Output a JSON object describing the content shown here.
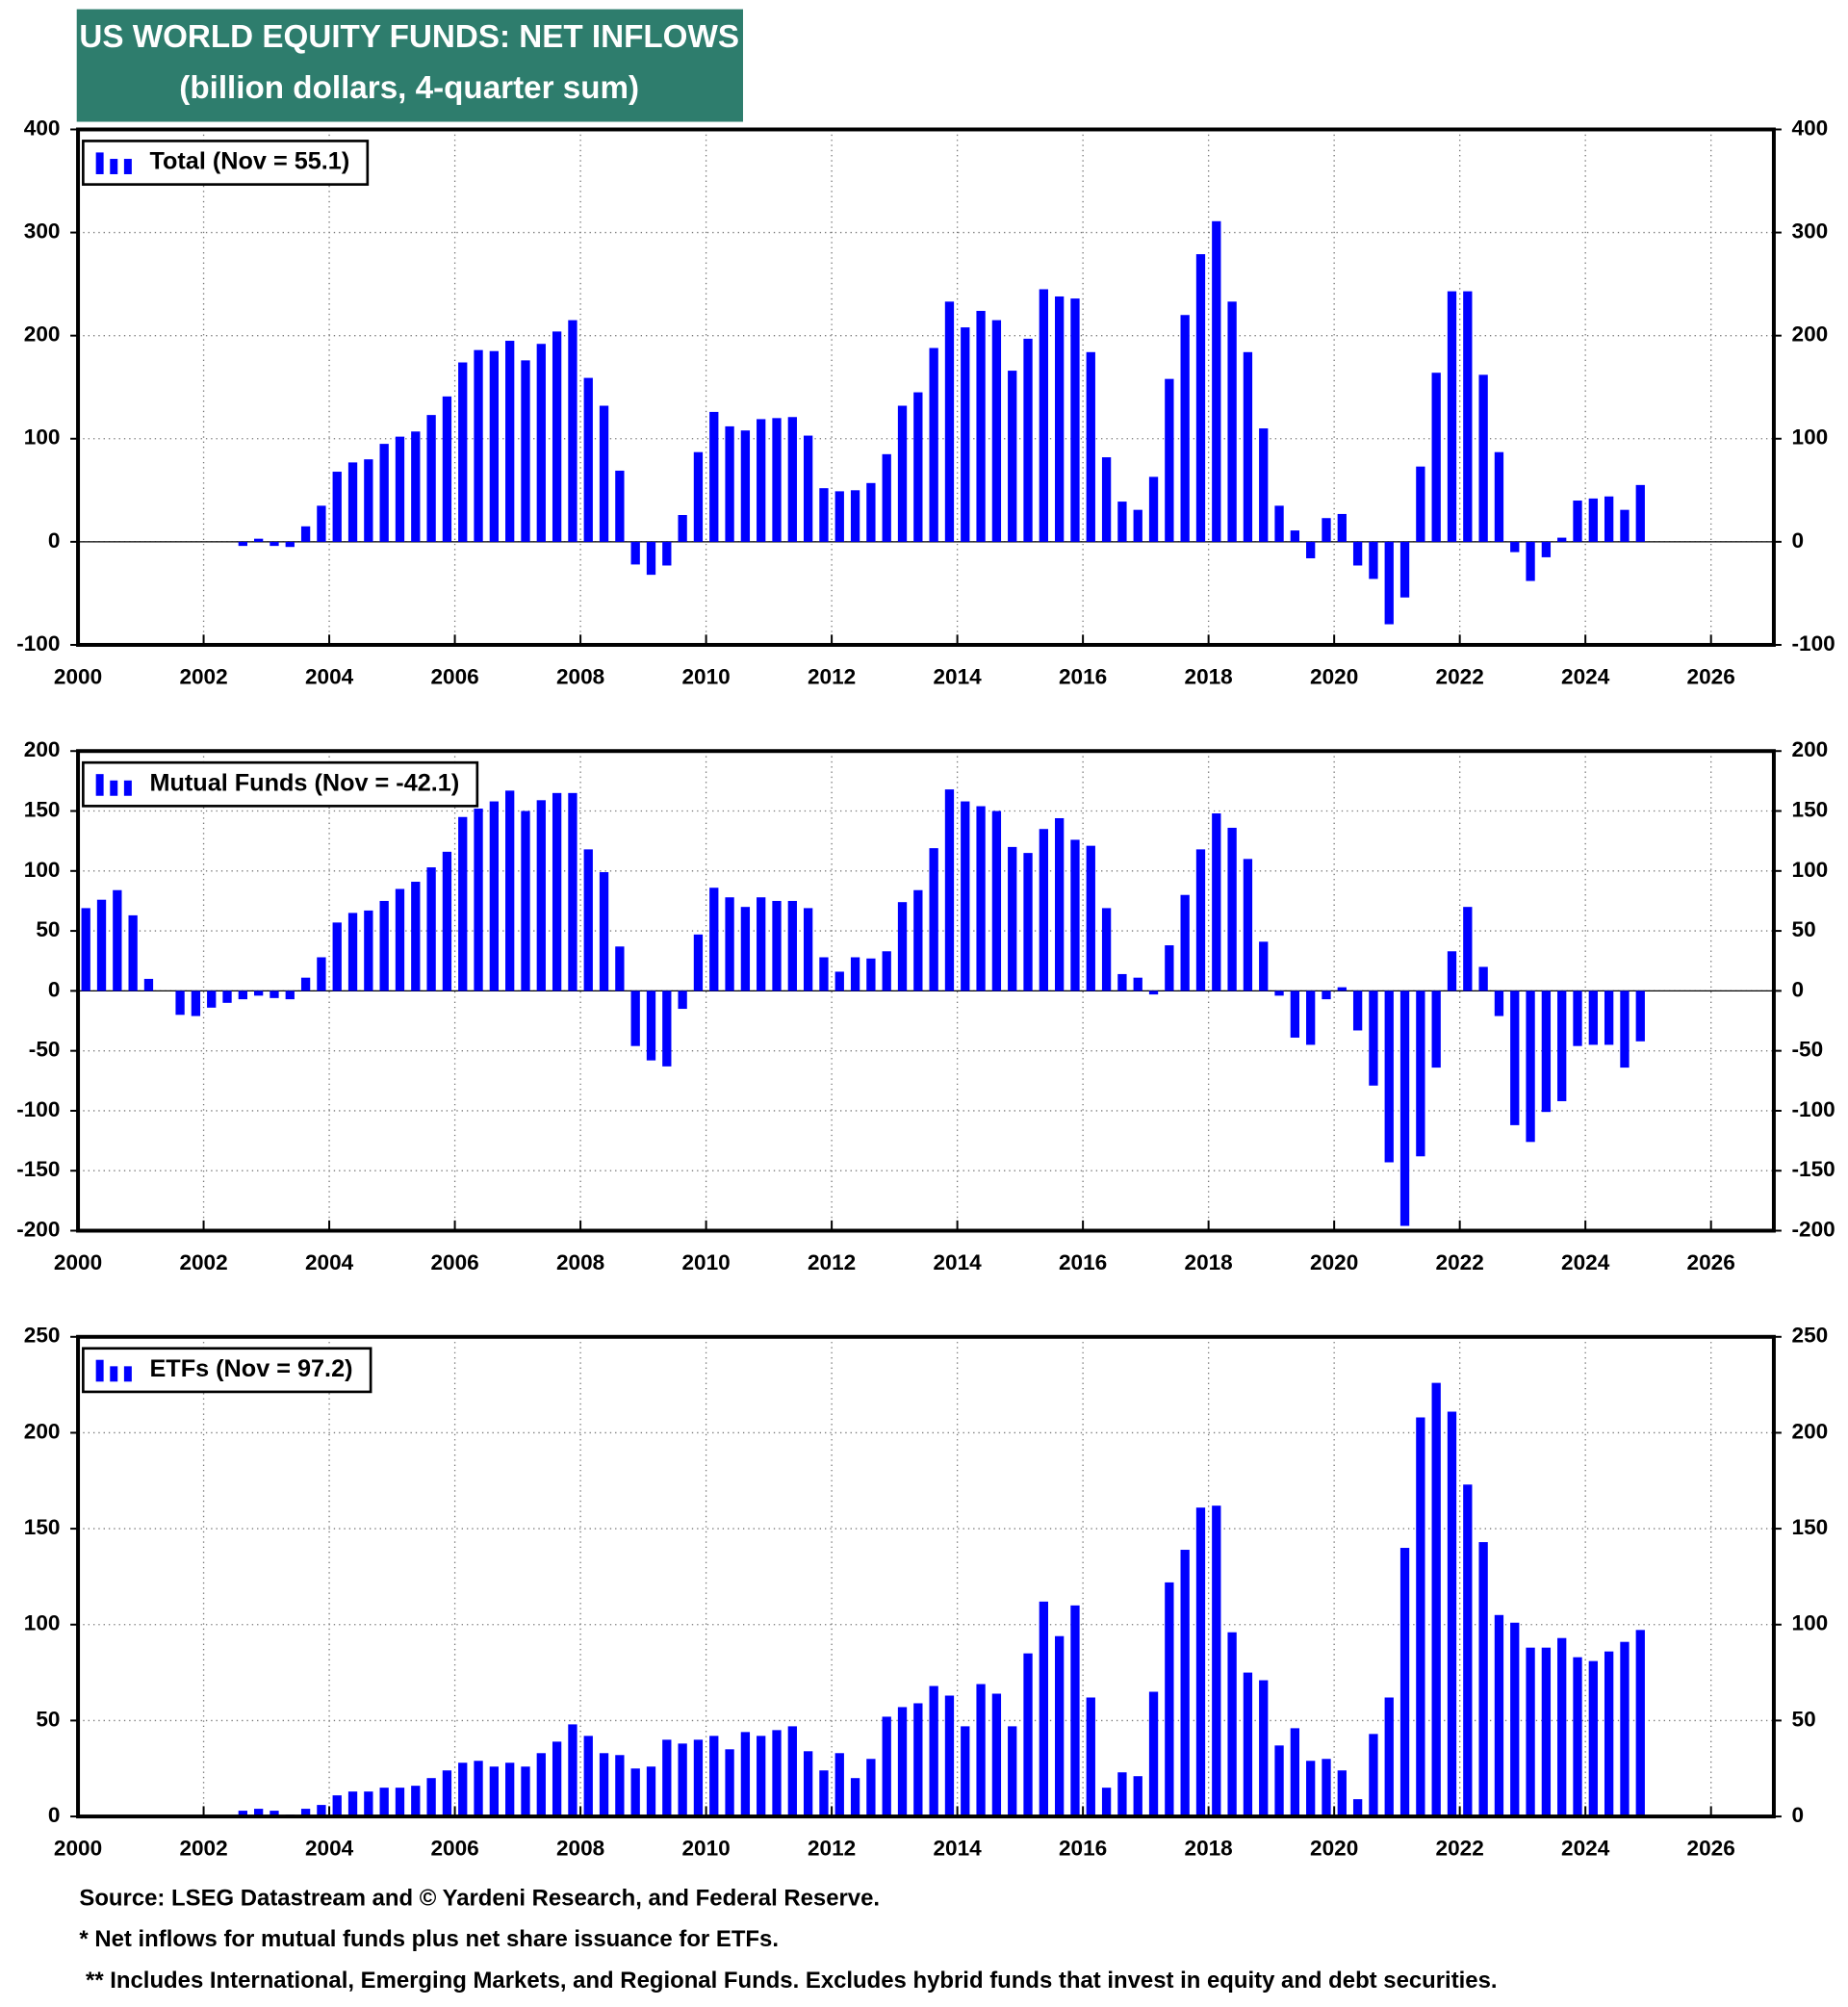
{
  "header": {
    "title": "US WORLD EQUITY FUNDS: NET INFLOWS",
    "subtitle": "(billion dollars, 4-quarter sum)"
  },
  "chart_data": [
    {
      "type": "bar",
      "x": [
        2002.625,
        2002.875,
        2003.125,
        2003.375,
        2003.625,
        2003.875,
        2004.125,
        2004.375,
        2004.625,
        2004.875,
        2005.125,
        2005.375,
        2005.625,
        2005.875,
        2006.125,
        2006.375,
        2006.625,
        2006.875,
        2007.125,
        2007.375,
        2007.625,
        2007.875,
        2008.125,
        2008.375,
        2008.625,
        2008.875,
        2009.125,
        2009.375,
        2009.625,
        2009.875,
        2010.125,
        2010.375,
        2010.625,
        2010.875,
        2011.125,
        2011.375,
        2011.625,
        2011.875,
        2012.125,
        2012.375,
        2012.625,
        2012.875,
        2013.125,
        2013.375,
        2013.625,
        2013.875,
        2014.125,
        2014.375,
        2014.625,
        2014.875,
        2015.125,
        2015.375,
        2015.625,
        2015.875,
        2016.125,
        2016.375,
        2016.625,
        2016.875,
        2017.125,
        2017.375,
        2017.625,
        2017.875,
        2018.125,
        2018.375,
        2018.625,
        2018.875,
        2019.125,
        2019.375,
        2019.625,
        2019.875,
        2020.125,
        2020.375,
        2020.625,
        2020.875,
        2021.125,
        2021.375,
        2021.625,
        2021.875,
        2022.125,
        2022.375,
        2022.625,
        2022.875,
        2023.125,
        2023.375,
        2023.625,
        2023.875,
        2024.125,
        2024.375,
        2024.625,
        2024.875
      ],
      "series": [
        {
          "name": "Total (Nov = 55.1)",
          "color": "#0000ff",
          "values": [
            -4,
            3,
            -4,
            -5,
            15,
            35,
            68,
            77,
            80,
            95,
            102,
            107,
            123,
            141,
            174,
            186,
            185,
            195,
            176,
            192,
            204,
            215,
            159,
            132,
            69,
            -22,
            -32,
            -23,
            26,
            87,
            126,
            112,
            108,
            119,
            120,
            121,
            103,
            52,
            49,
            50,
            57,
            85,
            132,
            145,
            188,
            233,
            208,
            224,
            215,
            166,
            197,
            245,
            238,
            236,
            184,
            82,
            39,
            31,
            63,
            158,
            220,
            279,
            311,
            233,
            184,
            110,
            35,
            11,
            -16,
            23,
            27,
            -23,
            -36,
            -80,
            -54,
            73,
            164,
            243,
            243,
            162,
            87,
            -10,
            -38,
            -15,
            4,
            40,
            42,
            44,
            31,
            55.1
          ]
        }
      ],
      "xlim": [
        2000,
        2027
      ],
      "xticks": [
        2000,
        2002,
        2004,
        2006,
        2008,
        2010,
        2012,
        2014,
        2016,
        2018,
        2020,
        2022,
        2024,
        2026
      ],
      "ylim": [
        -100,
        400
      ],
      "yticks": [
        -100,
        0,
        100,
        200,
        300,
        400
      ],
      "grid": true,
      "legend": "upper left",
      "mirror_y_axis": true
    },
    {
      "type": "bar",
      "x": [
        2000.125,
        2000.375,
        2000.625,
        2000.875,
        2001.125,
        2001.375,
        2001.625,
        2001.875,
        2002.125,
        2002.375,
        2002.625,
        2002.875,
        2003.125,
        2003.375,
        2003.625,
        2003.875,
        2004.125,
        2004.375,
        2004.625,
        2004.875,
        2005.125,
        2005.375,
        2005.625,
        2005.875,
        2006.125,
        2006.375,
        2006.625,
        2006.875,
        2007.125,
        2007.375,
        2007.625,
        2007.875,
        2008.125,
        2008.375,
        2008.625,
        2008.875,
        2009.125,
        2009.375,
        2009.625,
        2009.875,
        2010.125,
        2010.375,
        2010.625,
        2010.875,
        2011.125,
        2011.375,
        2011.625,
        2011.875,
        2012.125,
        2012.375,
        2012.625,
        2012.875,
        2013.125,
        2013.375,
        2013.625,
        2013.875,
        2014.125,
        2014.375,
        2014.625,
        2014.875,
        2015.125,
        2015.375,
        2015.625,
        2015.875,
        2016.125,
        2016.375,
        2016.625,
        2016.875,
        2017.125,
        2017.375,
        2017.625,
        2017.875,
        2018.125,
        2018.375,
        2018.625,
        2018.875,
        2019.125,
        2019.375,
        2019.625,
        2019.875,
        2020.125,
        2020.375,
        2020.625,
        2020.875,
        2021.125,
        2021.375,
        2021.625,
        2021.875,
        2022.125,
        2022.375,
        2022.625,
        2022.875,
        2023.125,
        2023.375,
        2023.625,
        2023.875,
        2024.125,
        2024.375,
        2024.625,
        2024.875
      ],
      "series": [
        {
          "name": "Mutual Funds (Nov = -42.1)",
          "color": "#0000ff",
          "values": [
            69,
            76,
            84,
            63,
            10,
            0,
            -20,
            -21,
            -14,
            -10,
            -7,
            -4,
            -6,
            -7,
            11,
            28,
            57,
            65,
            67,
            75,
            85,
            91,
            103,
            116,
            145,
            152,
            158,
            167,
            150,
            159,
            165,
            165,
            118,
            99,
            37,
            -46,
            -58,
            -63,
            -15,
            47,
            86,
            78,
            70,
            78,
            75,
            75,
            69,
            28,
            16,
            28,
            27,
            33,
            74,
            84,
            119,
            168,
            158,
            154,
            150,
            120,
            115,
            135,
            144,
            126,
            121,
            69,
            14,
            11,
            -3,
            38,
            80,
            118,
            148,
            136,
            110,
            41,
            -4,
            -39,
            -45,
            -7,
            3,
            -33,
            -79,
            -143,
            -196,
            -138,
            -64,
            33,
            70,
            20,
            -21,
            -112,
            -126,
            -101,
            -92,
            -46,
            -45,
            -45,
            -64,
            -42.1
          ]
        }
      ],
      "xlim": [
        2000,
        2027
      ],
      "xticks": [
        2000,
        2002,
        2004,
        2006,
        2008,
        2010,
        2012,
        2014,
        2016,
        2018,
        2020,
        2022,
        2024,
        2026
      ],
      "ylim": [
        -200,
        200
      ],
      "yticks": [
        -200,
        -150,
        -100,
        -50,
        0,
        50,
        100,
        150,
        200
      ],
      "grid": true,
      "legend": "upper left",
      "mirror_y_axis": true
    },
    {
      "type": "bar",
      "x": [
        2002.625,
        2002.875,
        2003.125,
        2003.375,
        2003.625,
        2003.875,
        2004.125,
        2004.375,
        2004.625,
        2004.875,
        2005.125,
        2005.375,
        2005.625,
        2005.875,
        2006.125,
        2006.375,
        2006.625,
        2006.875,
        2007.125,
        2007.375,
        2007.625,
        2007.875,
        2008.125,
        2008.375,
        2008.625,
        2008.875,
        2009.125,
        2009.375,
        2009.625,
        2009.875,
        2010.125,
        2010.375,
        2010.625,
        2010.875,
        2011.125,
        2011.375,
        2011.625,
        2011.875,
        2012.125,
        2012.375,
        2012.625,
        2012.875,
        2013.125,
        2013.375,
        2013.625,
        2013.875,
        2014.125,
        2014.375,
        2014.625,
        2014.875,
        2015.125,
        2015.375,
        2015.625,
        2015.875,
        2016.125,
        2016.375,
        2016.625,
        2016.875,
        2017.125,
        2017.375,
        2017.625,
        2017.875,
        2018.125,
        2018.375,
        2018.625,
        2018.875,
        2019.125,
        2019.375,
        2019.625,
        2019.875,
        2020.125,
        2020.375,
        2020.625,
        2020.875,
        2021.125,
        2021.375,
        2021.625,
        2021.875,
        2022.125,
        2022.375,
        2022.625,
        2022.875,
        2023.125,
        2023.375,
        2023.625,
        2023.875,
        2024.125,
        2024.375,
        2024.625,
        2024.875
      ],
      "series": [
        {
          "name": "ETFs (Nov = 97.2)",
          "color": "#0000ff",
          "values": [
            3,
            4,
            3,
            1,
            4,
            6,
            11,
            13,
            13,
            15,
            15,
            16,
            20,
            24,
            28,
            29,
            26,
            28,
            26,
            33,
            39,
            48,
            42,
            33,
            32,
            25,
            26,
            40,
            38,
            40,
            42,
            35,
            44,
            42,
            45,
            47,
            34,
            24,
            33,
            20,
            30,
            52,
            57,
            59,
            68,
            63,
            47,
            69,
            64,
            47,
            85,
            112,
            94,
            110,
            62,
            15,
            23,
            21,
            65,
            122,
            139,
            161,
            162,
            96,
            75,
            71,
            37,
            46,
            29,
            30,
            24,
            9,
            43,
            62,
            140,
            208,
            226,
            211,
            173,
            143,
            105,
            101,
            88,
            88,
            93,
            83,
            81,
            86,
            91,
            97.2
          ]
        }
      ],
      "xlim": [
        2000,
        2027
      ],
      "xticks": [
        2000,
        2002,
        2004,
        2006,
        2008,
        2010,
        2012,
        2014,
        2016,
        2018,
        2020,
        2022,
        2024,
        2026
      ],
      "ylim": [
        0,
        250
      ],
      "yticks": [
        0,
        50,
        100,
        150,
        200,
        250
      ],
      "grid": true,
      "legend": "upper left",
      "mirror_y_axis": true
    }
  ],
  "footnotes": [
    "Source: LSEG Datastream and © Yardeni Research, and  Federal Reserve.",
    "* Net inflows for mutual funds plus net share issuance for ETFs.",
    " ** Includes International, Emerging Markets, and Regional Funds. Excludes hybrid funds that invest in equity and debt securities."
  ]
}
